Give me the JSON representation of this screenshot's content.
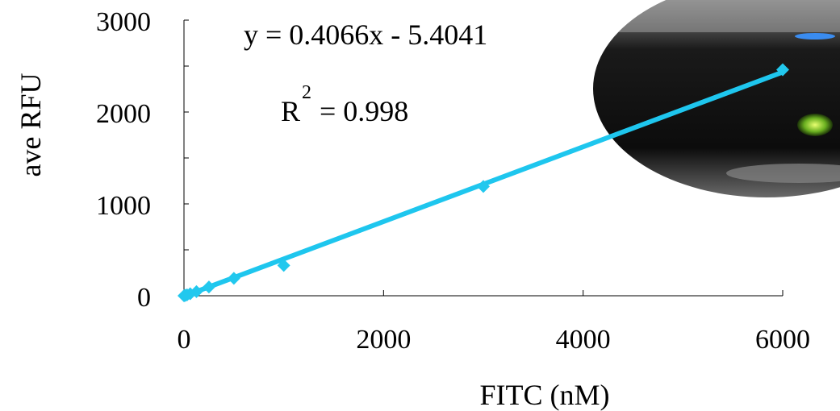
{
  "chart_data": {
    "type": "scatter",
    "x_label": "FITC (nM)",
    "y_label": "ave RFU",
    "annotations": [
      "y = 0.4066x - 5.4041",
      "R",
      "2",
      "= 0.998"
    ],
    "trendline": {
      "slope": 0.4066,
      "intercept": -5.4041,
      "color": "#1ec6ee"
    },
    "series": [
      {
        "name": null,
        "color": "#22c8ee",
        "x": [
          0,
          7.8,
          15.6,
          31.25,
          62.5,
          125,
          250,
          500,
          1000,
          3000,
          6000
        ],
        "values": [
          0,
          2,
          5,
          10,
          22,
          45,
          95,
          190,
          330,
          1190,
          2460
        ]
      }
    ],
    "xlim": [
      0,
      6000
    ],
    "xticks": [
      0,
      2000,
      4000,
      6000
    ],
    "ylim": [
      0,
      3000
    ],
    "yticks": [
      0,
      1000,
      2000,
      3000
    ],
    "yminor_ticks": [
      500,
      1500,
      2500
    ],
    "grid": false
  }
}
